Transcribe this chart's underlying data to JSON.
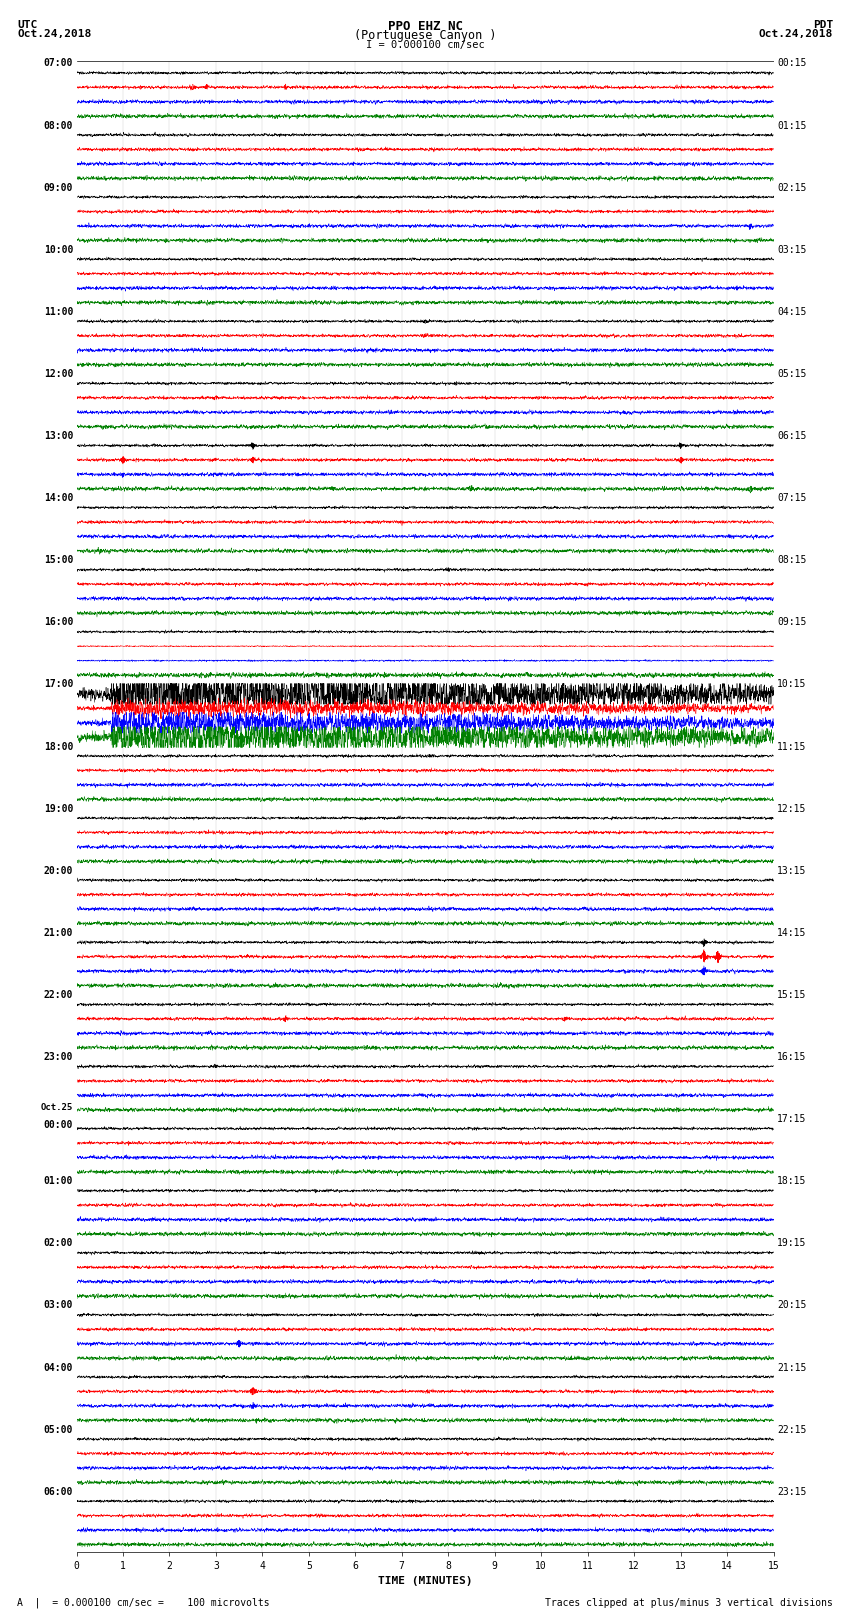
{
  "title_line1": "PPO EHZ NC",
  "title_line2": "(Portuguese Canyon )",
  "scale_label": "I = 0.000100 cm/sec",
  "utc_label": "UTC",
  "utc_date": "Oct.24,2018",
  "pdt_label": "PDT",
  "pdt_date": "Oct.24,2018",
  "xlabel": "TIME (MINUTES)",
  "footer_left": "A  |  = 0.000100 cm/sec =    100 microvolts",
  "footer_right": "Traces clipped at plus/minus 3 vertical divisions",
  "left_times": [
    "07:00",
    "08:00",
    "09:00",
    "10:00",
    "11:00",
    "12:00",
    "13:00",
    "14:00",
    "15:00",
    "16:00",
    "17:00",
    "18:00",
    "19:00",
    "20:00",
    "21:00",
    "22:00",
    "23:00",
    "Oct.25\n00:00",
    "01:00",
    "02:00",
    "03:00",
    "04:00",
    "05:00",
    "06:00"
  ],
  "right_times": [
    "00:15",
    "01:15",
    "02:15",
    "03:15",
    "04:15",
    "05:15",
    "06:15",
    "07:15",
    "08:15",
    "09:15",
    "10:15",
    "11:15",
    "12:15",
    "13:15",
    "14:15",
    "15:15",
    "16:15",
    "17:15",
    "18:15",
    "19:15",
    "20:15",
    "21:15",
    "22:15",
    "23:15"
  ],
  "bg_color": "#ffffff",
  "trace_colors": [
    "black",
    "red",
    "blue",
    "green"
  ],
  "num_rows": 24,
  "traces_per_row": 4,
  "minutes": 15,
  "noise_amplitude": 0.06,
  "font_size_title": 9,
  "font_size_labels": 8,
  "font_size_ticks": 7,
  "font_size_footer": 7,
  "lw": 0.35
}
